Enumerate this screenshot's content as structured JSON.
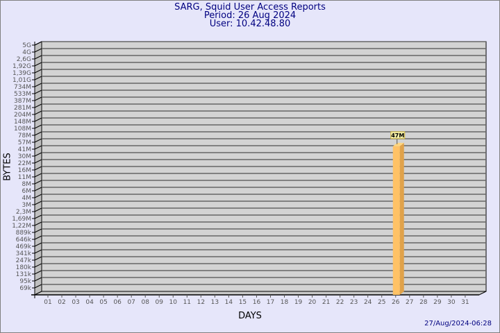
{
  "title": "SARG, Squid User Access Reports",
  "period": "Period: 26 Aug 2024",
  "user": "User: 10.42.48.80",
  "timestamp": "27/Aug/2024-06:28",
  "colors": {
    "background": "#e6e6fa",
    "plot": "#d3d3d3",
    "bar_front": "#ffc266",
    "bar_side": "#e0a24a",
    "bar_top": "#ffd680",
    "title": "#000080"
  },
  "chart_data": {
    "type": "bar",
    "title": "SARG, Squid User Access Reports",
    "xlabel": "DAYS",
    "ylabel": "BYTES",
    "y_scale": "log",
    "grid": true,
    "y_ticks": [
      "5G",
      "4G",
      "2,6G",
      "1,92G",
      "1,39G",
      "1,01G",
      "734M",
      "533M",
      "387M",
      "281M",
      "204M",
      "148M",
      "108M",
      "78M",
      "57M",
      "41M",
      "30M",
      "22M",
      "16M",
      "11M",
      "8M",
      "6M",
      "4M",
      "3M",
      "2,3M",
      "1,69M",
      "1,22M",
      "889k",
      "646k",
      "469k",
      "341k",
      "247k",
      "180k",
      "131k",
      "95k",
      "69k"
    ],
    "categories": [
      "01",
      "02",
      "03",
      "04",
      "05",
      "06",
      "07",
      "08",
      "09",
      "10",
      "11",
      "12",
      "13",
      "14",
      "15",
      "16",
      "17",
      "18",
      "19",
      "20",
      "21",
      "22",
      "23",
      "24",
      "25",
      "26",
      "27",
      "28",
      "29",
      "30",
      "31"
    ],
    "bars": [
      {
        "day": "26",
        "value_bytes": 47000000,
        "label": "47M"
      }
    ]
  }
}
